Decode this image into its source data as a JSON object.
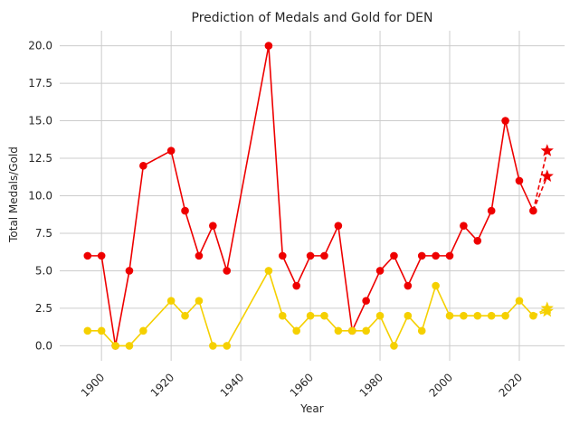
{
  "chart_data": {
    "type": "line",
    "title": "Prediction of Medals and Gold for DEN",
    "xlabel": "Year",
    "ylabel": "Total Medals/Gold",
    "xlim": [
      1888,
      2033
    ],
    "ylim": [
      -1,
      21
    ],
    "xticks": [
      1900,
      1920,
      1940,
      1960,
      1980,
      2000,
      2020
    ],
    "yticks": [
      0.0,
      2.5,
      5.0,
      7.5,
      10.0,
      12.5,
      15.0,
      17.5,
      20.0
    ],
    "ytick_labels": [
      "0.0",
      "2.5",
      "5.0",
      "7.5",
      "10.0",
      "12.5",
      "15.0",
      "17.5",
      "20.0"
    ],
    "grid": true,
    "x_tick_rotation": 45,
    "x": [
      1896,
      1900,
      1904,
      1908,
      1912,
      1920,
      1924,
      1928,
      1932,
      1936,
      1948,
      1952,
      1956,
      1960,
      1964,
      1968,
      1972,
      1976,
      1980,
      1984,
      1988,
      1992,
      1996,
      2000,
      2004,
      2008,
      2012,
      2016,
      2020,
      2024
    ],
    "series": [
      {
        "color": "#ee0000",
        "values": [
          6,
          6,
          0,
          5,
          12,
          13,
          9,
          6,
          8,
          5,
          20,
          6,
          4,
          6,
          6,
          8,
          1,
          3,
          5,
          6,
          4,
          6,
          6,
          6,
          8,
          7,
          9,
          15,
          11,
          9
        ],
        "prediction_year": 2028,
        "predictions": [
          13.0,
          11.3
        ]
      },
      {
        "color": "#f5d000",
        "values": [
          1,
          1,
          0,
          0,
          1,
          3,
          2,
          3,
          0,
          0,
          5,
          2,
          1,
          2,
          2,
          1,
          1,
          1,
          2,
          0,
          2,
          1,
          4,
          2,
          2,
          2,
          2,
          2,
          3,
          2
        ],
        "prediction_year": 2028,
        "predictions": [
          2.5,
          2.3
        ]
      }
    ]
  }
}
